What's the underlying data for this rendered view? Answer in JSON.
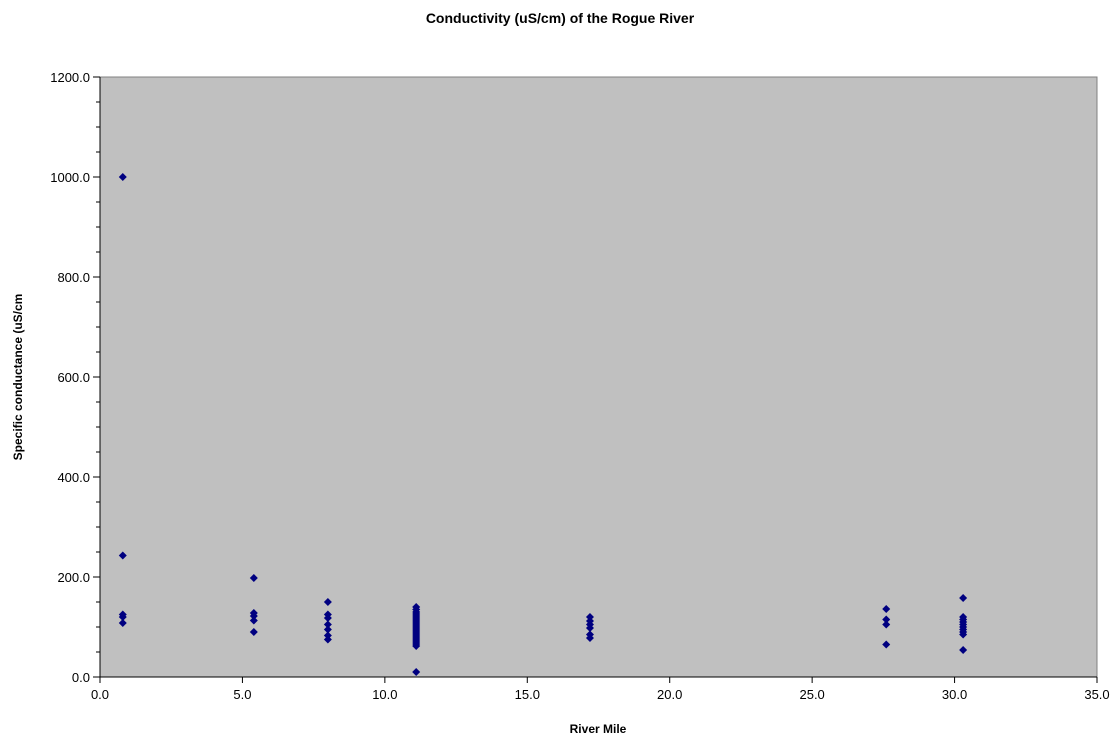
{
  "chart_data": {
    "type": "scatter",
    "title": "Conductivity (uS/cm) of the Rogue River",
    "xlabel": "River Mile",
    "ylabel": "Specific conductance (uS/cm",
    "xlim": [
      0,
      35
    ],
    "ylim": [
      0,
      1200
    ],
    "x_ticks": [
      "0.0",
      "5.0",
      "10.0",
      "15.0",
      "20.0",
      "25.0",
      "30.0",
      "35.0"
    ],
    "y_ticks": [
      "0.0",
      "200.0",
      "400.0",
      "600.0",
      "800.0",
      "1000.0",
      "1200.0"
    ],
    "grid": false,
    "legend": "none",
    "plot_background": "#c0c0c0",
    "marker": "diamond",
    "marker_color": "#000080",
    "points": [
      [
        0.8,
        1000
      ],
      [
        0.8,
        243
      ],
      [
        0.8,
        125
      ],
      [
        0.8,
        120
      ],
      [
        0.8,
        108
      ],
      [
        5.4,
        198
      ],
      [
        5.4,
        128
      ],
      [
        5.4,
        122
      ],
      [
        5.4,
        113
      ],
      [
        5.4,
        90
      ],
      [
        8.0,
        150
      ],
      [
        8.0,
        125
      ],
      [
        8.0,
        118
      ],
      [
        8.0,
        105
      ],
      [
        8.0,
        95
      ],
      [
        8.0,
        83
      ],
      [
        8.0,
        75
      ],
      [
        11.1,
        140
      ],
      [
        11.1,
        135
      ],
      [
        11.1,
        130
      ],
      [
        11.1,
        126
      ],
      [
        11.1,
        122
      ],
      [
        11.1,
        118
      ],
      [
        11.1,
        114
      ],
      [
        11.1,
        110
      ],
      [
        11.1,
        106
      ],
      [
        11.1,
        102
      ],
      [
        11.1,
        98
      ],
      [
        11.1,
        94
      ],
      [
        11.1,
        90
      ],
      [
        11.1,
        86
      ],
      [
        11.1,
        82
      ],
      [
        11.1,
        78
      ],
      [
        11.1,
        74
      ],
      [
        11.1,
        70
      ],
      [
        11.1,
        66
      ],
      [
        11.1,
        62
      ],
      [
        11.1,
        10
      ],
      [
        17.2,
        120
      ],
      [
        17.2,
        112
      ],
      [
        17.2,
        105
      ],
      [
        17.2,
        98
      ],
      [
        17.2,
        85
      ],
      [
        17.2,
        78
      ],
      [
        27.6,
        136
      ],
      [
        27.6,
        115
      ],
      [
        27.6,
        105
      ],
      [
        27.6,
        65
      ],
      [
        30.3,
        158
      ],
      [
        30.3,
        120
      ],
      [
        30.3,
        115
      ],
      [
        30.3,
        110
      ],
      [
        30.3,
        105
      ],
      [
        30.3,
        100
      ],
      [
        30.3,
        95
      ],
      [
        30.3,
        90
      ],
      [
        30.3,
        85
      ],
      [
        30.3,
        54
      ]
    ]
  }
}
